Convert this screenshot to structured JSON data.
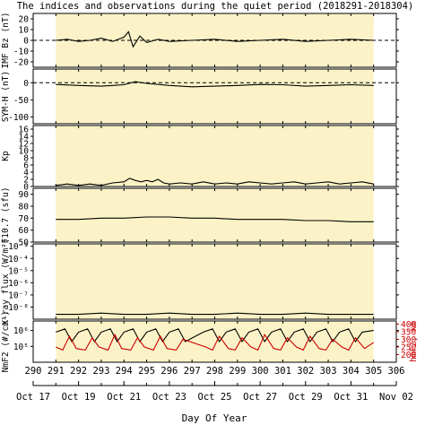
{
  "title": "The indices and observations during the quiet period (2018291-2018304)",
  "colors": {
    "shade": "#fbf3c7",
    "trace": "#000000",
    "secondary": "#cc0000",
    "frame": "#000000"
  },
  "x_axis": {
    "label": "Day Of Year",
    "range": [
      290,
      306
    ],
    "doy_ticks": [
      "290",
      "291",
      "292",
      "293",
      "294",
      "295",
      "296",
      "297",
      "298",
      "299",
      "300",
      "301",
      "302",
      "303",
      "304",
      "305",
      "306"
    ],
    "date_ticks": [
      {
        "doy": 290,
        "label": "Oct 17"
      },
      {
        "doy": 292,
        "label": "Oct 19"
      },
      {
        "doy": 294,
        "label": "Oct 21"
      },
      {
        "doy": 296,
        "label": "Oct 23"
      },
      {
        "doy": 298,
        "label": "Oct 25"
      },
      {
        "doy": 300,
        "label": "Oct 27"
      },
      {
        "doy": 302,
        "label": "Oct 29"
      },
      {
        "doy": 304,
        "label": "Oct 31"
      },
      {
        "doy": 306,
        "label": "Nov 02"
      }
    ],
    "shaded_interval": [
      291,
      305
    ]
  },
  "chart_data": [
    {
      "type": "line",
      "panel": "imf-bz",
      "ylabel": "IMF Bz (nT)",
      "ylim": [
        -25,
        25
      ],
      "yticks": [
        "20",
        "10",
        "0",
        "-10",
        "-20"
      ],
      "reference_line": 0,
      "series": [
        {
          "values": [
            [
              291,
              0
            ],
            [
              291.5,
              1
            ],
            [
              292,
              -1
            ],
            [
              292.5,
              0
            ],
            [
              293,
              2
            ],
            [
              293.5,
              -1
            ],
            [
              294,
              3
            ],
            [
              294.2,
              8
            ],
            [
              294.4,
              -6
            ],
            [
              294.7,
              4
            ],
            [
              295,
              -2
            ],
            [
              295.5,
              1
            ],
            [
              296,
              -1
            ],
            [
              297,
              0
            ],
            [
              298,
              1
            ],
            [
              299,
              -1
            ],
            [
              300,
              0
            ],
            [
              301,
              1
            ],
            [
              302,
              -1
            ],
            [
              303,
              0
            ],
            [
              304,
              1
            ],
            [
              305,
              0
            ]
          ]
        }
      ]
    },
    {
      "type": "line",
      "panel": "sym-h",
      "ylabel": "SYM-H (nT)",
      "ylim": [
        -120,
        40
      ],
      "yticks": [
        "0",
        "-50",
        "-100"
      ],
      "reference_line": 0,
      "series": [
        {
          "values": [
            [
              291,
              -5
            ],
            [
              292,
              -8
            ],
            [
              293,
              -10
            ],
            [
              294,
              -6
            ],
            [
              294.5,
              3
            ],
            [
              295,
              -2
            ],
            [
              296,
              -8
            ],
            [
              297,
              -12
            ],
            [
              298,
              -10
            ],
            [
              299,
              -8
            ],
            [
              300,
              -5
            ],
            [
              301,
              -6
            ],
            [
              302,
              -10
            ],
            [
              303,
              -8
            ],
            [
              304,
              -6
            ],
            [
              305,
              -8
            ]
          ]
        }
      ]
    },
    {
      "type": "line",
      "panel": "kp",
      "ylabel": "Kp",
      "ylim": [
        0,
        17
      ],
      "yticks": [
        "0",
        "2",
        "4",
        "6",
        "8",
        "10",
        "12",
        "14",
        "16"
      ],
      "series": [
        {
          "values": [
            [
              291,
              0.3
            ],
            [
              291.5,
              0.7
            ],
            [
              292,
              0.3
            ],
            [
              292.5,
              0.7
            ],
            [
              293,
              0.3
            ],
            [
              293.5,
              1
            ],
            [
              294,
              1.3
            ],
            [
              294.25,
              2.3
            ],
            [
              294.5,
              1.7
            ],
            [
              294.75,
              1.3
            ],
            [
              295,
              1.7
            ],
            [
              295.25,
              1.3
            ],
            [
              295.5,
              2
            ],
            [
              295.75,
              1
            ],
            [
              296,
              0.7
            ],
            [
              296.5,
              1
            ],
            [
              297,
              0.7
            ],
            [
              297.5,
              1.3
            ],
            [
              298,
              0.7
            ],
            [
              298.5,
              1
            ],
            [
              299,
              0.7
            ],
            [
              299.5,
              1.3
            ],
            [
              300,
              1
            ],
            [
              300.5,
              0.7
            ],
            [
              301,
              1
            ],
            [
              301.5,
              1.3
            ],
            [
              302,
              0.7
            ],
            [
              302.5,
              1
            ],
            [
              303,
              1.3
            ],
            [
              303.5,
              0.7
            ],
            [
              304,
              1
            ],
            [
              304.5,
              1.3
            ],
            [
              305,
              0.7
            ]
          ]
        }
      ]
    },
    {
      "type": "line",
      "panel": "f107",
      "ylabel": "F10.7 (sfu)",
      "ylim": [
        50,
        95
      ],
      "yticks": [
        "90",
        "80",
        "70",
        "60",
        "50"
      ],
      "series": [
        {
          "values": [
            [
              291,
              69
            ],
            [
              292,
              69
            ],
            [
              293,
              70
            ],
            [
              294,
              70
            ],
            [
              295,
              71
            ],
            [
              296,
              71
            ],
            [
              297,
              70
            ],
            [
              298,
              70
            ],
            [
              299,
              69
            ],
            [
              300,
              69
            ],
            [
              301,
              69
            ],
            [
              302,
              68
            ],
            [
              303,
              68
            ],
            [
              304,
              67
            ],
            [
              305,
              67
            ]
          ]
        }
      ]
    },
    {
      "type": "line",
      "panel": "xray",
      "ylabel": "X-ray flux (W/m²)",
      "scale": "log",
      "ylim": [
        -9,
        -2.8
      ],
      "yticks": [
        "10⁻³",
        "10⁻⁴",
        "10⁻⁵",
        "10⁻⁶",
        "10⁻⁷",
        "10⁻⁸"
      ],
      "series": [
        {
          "values": [
            [
              291,
              -8.6
            ],
            [
              292,
              -8.6
            ],
            [
              293,
              -8.5
            ],
            [
              294,
              -8.6
            ],
            [
              295,
              -8.6
            ],
            [
              296,
              -8.5
            ],
            [
              297,
              -8.6
            ],
            [
              298,
              -8.6
            ],
            [
              299,
              -8.5
            ],
            [
              300,
              -8.6
            ],
            [
              301,
              -8.6
            ],
            [
              302,
              -8.5
            ],
            [
              303,
              -8.6
            ],
            [
              304,
              -8.6
            ],
            [
              305,
              -8.6
            ]
          ]
        }
      ]
    },
    {
      "type": "line",
      "panel": "nmf2-hmf2",
      "ylabel": "NmF2 (#/cm³)",
      "ylabel_right": "hmF2, km",
      "scale": "log",
      "ylim": [
        4,
        6.6
      ],
      "yticks": [
        "10⁶",
        "10⁵"
      ],
      "ylim_right": [
        150,
        420
      ],
      "yticks_right": [
        "400",
        "350",
        "300",
        "250",
        "200"
      ],
      "series": [
        {
          "values": [
            [
              291,
              5.9
            ],
            [
              291.4,
              6.1
            ],
            [
              291.7,
              5.3
            ],
            [
              292,
              5.9
            ],
            [
              292.4,
              6.1
            ],
            [
              292.7,
              5.3
            ],
            [
              293,
              5.9
            ],
            [
              293.4,
              6.1
            ],
            [
              293.7,
              5.3
            ],
            [
              294,
              5.9
            ],
            [
              294.4,
              6.1
            ],
            [
              294.7,
              5.3
            ],
            [
              295,
              5.9
            ],
            [
              295.4,
              6.1
            ],
            [
              295.7,
              5.3
            ],
            [
              296,
              5.9
            ],
            [
              296.4,
              6.1
            ],
            [
              296.7,
              5.3
            ],
            [
              297.5,
              5.9
            ],
            [
              297.9,
              6.1
            ],
            [
              298.2,
              5.3
            ],
            [
              298.5,
              5.9
            ],
            [
              298.9,
              6.1
            ],
            [
              299.2,
              5.3
            ],
            [
              299.5,
              5.9
            ],
            [
              299.9,
              6.1
            ],
            [
              300.2,
              5.3
            ],
            [
              300.5,
              5.9
            ],
            [
              300.9,
              6.1
            ],
            [
              301.2,
              5.3
            ],
            [
              301.5,
              5.9
            ],
            [
              301.9,
              6.1
            ],
            [
              302.2,
              5.3
            ],
            [
              302.5,
              5.9
            ],
            [
              302.9,
              6.1
            ],
            [
              303.2,
              5.3
            ],
            [
              303.5,
              5.9
            ],
            [
              303.9,
              6.1
            ],
            [
              304.2,
              5.3
            ],
            [
              304.5,
              5.9
            ],
            [
              305,
              6.0
            ]
          ]
        },
        {
          "axis": "right",
          "values": [
            [
              291,
              250
            ],
            [
              291.3,
              230
            ],
            [
              291.6,
              320
            ],
            [
              291.9,
              240
            ],
            [
              292.3,
              230
            ],
            [
              292.6,
              310
            ],
            [
              292.9,
              250
            ],
            [
              293.3,
              230
            ],
            [
              293.6,
              330
            ],
            [
              293.9,
              240
            ],
            [
              294.3,
              230
            ],
            [
              294.6,
              310
            ],
            [
              294.9,
              250
            ],
            [
              295.3,
              230
            ],
            [
              295.6,
              320
            ],
            [
              295.9,
              240
            ],
            [
              296.3,
              230
            ],
            [
              296.6,
              300
            ],
            [
              297.6,
              250
            ],
            [
              297.9,
              230
            ],
            [
              298.2,
              320
            ],
            [
              298.6,
              240
            ],
            [
              298.9,
              230
            ],
            [
              299.2,
              310
            ],
            [
              299.6,
              250
            ],
            [
              299.9,
              230
            ],
            [
              300.2,
              330
            ],
            [
              300.6,
              240
            ],
            [
              300.9,
              230
            ],
            [
              301.2,
              310
            ],
            [
              301.6,
              250
            ],
            [
              301.9,
              230
            ],
            [
              302.2,
              320
            ],
            [
              302.6,
              240
            ],
            [
              302.9,
              230
            ],
            [
              303.2,
              300
            ],
            [
              303.6,
              250
            ],
            [
              303.9,
              230
            ],
            [
              304.2,
              310
            ],
            [
              304.6,
              240
            ],
            [
              305,
              280
            ]
          ]
        }
      ]
    }
  ]
}
